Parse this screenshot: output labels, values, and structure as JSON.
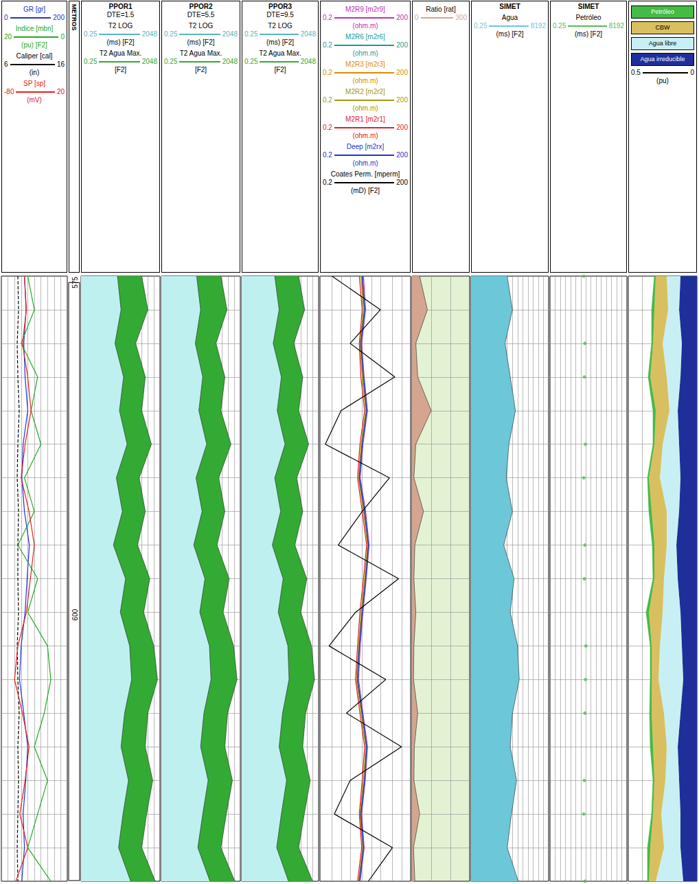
{
  "chart_data": [
    {
      "type": "line",
      "xlim": [
        0,
        200
      ],
      "xticks": [
        0,
        20,
        40,
        60,
        80,
        100,
        120,
        140,
        160,
        180,
        200
      ],
      "grid": true,
      "tick_labels": false,
      "y": [
        575,
        577.5,
        580,
        582.5,
        585,
        587.5,
        590,
        592.5,
        595,
        597.5,
        600,
        602.5,
        605,
        607.5,
        610,
        612.5,
        615,
        617.5,
        620
      ],
      "series": [
        {
          "name": "GR [gr]",
          "color": "#2233cc",
          "values": [
            70,
            75,
            68,
            72,
            80,
            66,
            62,
            70,
            85,
            78,
            72,
            60,
            55,
            68,
            80,
            74,
            66,
            70,
            62
          ]
        },
        {
          "name": "Indice [mbn]",
          "unit": "(pu) [F2]",
          "color": "#22aa22",
          "xlim": [
            20,
            0
          ],
          "values": [
            12,
            10,
            14,
            9,
            11,
            8,
            13,
            10,
            15,
            9,
            12,
            6,
            5,
            7,
            10,
            6,
            9,
            12,
            5
          ]
        },
        {
          "name": "Caliper [cal]",
          "unit": "(in)",
          "color": "#000000",
          "line_style": "dashed",
          "xlim": [
            6,
            16
          ],
          "values": [
            8.5,
            8.6,
            8.4,
            8.5,
            8.7,
            8.5,
            8.4,
            8.6,
            8.5,
            8.5,
            8.6,
            8.4,
            8.5,
            8.7,
            8.5,
            8.6,
            8.5,
            8.4,
            8.5
          ]
        },
        {
          "name": "SP [sp]",
          "unit": "(mV)",
          "color": "#dd2222",
          "xlim": [
            -80,
            20
          ],
          "values": [
            -45,
            -42,
            -48,
            -40,
            -35,
            -44,
            -50,
            -38,
            -30,
            -36,
            -42,
            -55,
            -60,
            -48,
            -38,
            -44,
            -52,
            -40,
            -58
          ]
        }
      ]
    },
    {
      "type": "depth",
      "title": "METROS",
      "tick_labels": "y",
      "yticks": [
        575,
        600
      ],
      "y": [
        575,
        577.5,
        580,
        582.5,
        585,
        587.5,
        590,
        592.5,
        595,
        597.5,
        600,
        602.5,
        605,
        607.5,
        610,
        612.5,
        615,
        617.5,
        620
      ]
    },
    {
      "type": "area",
      "title": "PPOR1",
      "subtitle": "DTE=1.5",
      "log": "x",
      "xlim": [
        0.25,
        2048
      ],
      "xticks": [
        0.25,
        0.5,
        1,
        2,
        4,
        8,
        16,
        32,
        64,
        128,
        256,
        512,
        1024,
        2048
      ],
      "grid": true,
      "tick_labels": false,
      "y": [
        575,
        577.5,
        580,
        582.5,
        585,
        587.5,
        590,
        592.5,
        595,
        597.5,
        600,
        602.5,
        605,
        607.5,
        610,
        612.5,
        615,
        617.5,
        620
      ],
      "series": [
        {
          "name": "T2 LOG",
          "unit": "(ms) [F2]",
          "color": "#bff0f0",
          "values": [
            16,
            24,
            12,
            32,
            20,
            48,
            14,
            28,
            10,
            40,
            22,
            64,
            80,
            36,
            24,
            56,
            30,
            18,
            72
          ]
        },
        {
          "name": "T2 Agua Max.",
          "unit": "[F2]",
          "color": "#33aa33",
          "values": [
            256,
            512,
            128,
            384,
            256,
            768,
            192,
            384,
            160,
            640,
            320,
            1024,
            1536,
            512,
            384,
            896,
            448,
            256,
            1200
          ]
        }
      ]
    },
    {
      "type": "area",
      "title": "PPOR2",
      "subtitle": "DTE=5.5",
      "log": "x",
      "xlim": [
        0.25,
        2048
      ],
      "xticks": [
        0.25,
        0.5,
        1,
        2,
        4,
        8,
        16,
        32,
        64,
        128,
        256,
        512,
        1024,
        2048
      ],
      "grid": true,
      "tick_labels": false,
      "y": [
        575,
        577.5,
        580,
        582.5,
        585,
        587.5,
        590,
        592.5,
        595,
        597.5,
        600,
        602.5,
        605,
        607.5,
        610,
        612.5,
        615,
        617.5,
        620
      ],
      "series": [
        {
          "name": "T2 LOG",
          "unit": "(ms) [F2]",
          "color": "#bff0f0",
          "values": [
            14,
            22,
            12,
            28,
            18,
            44,
            13,
            26,
            10,
            36,
            20,
            60,
            72,
            32,
            22,
            52,
            28,
            16,
            64
          ]
        },
        {
          "name": "T2 Agua Max.",
          "unit": "[F2]",
          "color": "#33aa33",
          "values": [
            224,
            448,
            128,
            352,
            224,
            704,
            176,
            352,
            144,
            576,
            288,
            960,
            1408,
            480,
            352,
            832,
            416,
            224,
            1100
          ]
        }
      ]
    },
    {
      "type": "area",
      "title": "PPOR3",
      "subtitle": "DTE=9.5",
      "log": "x",
      "xlim": [
        0.25,
        2048
      ],
      "xticks": [
        0.25,
        0.5,
        1,
        2,
        4,
        8,
        16,
        32,
        64,
        128,
        256,
        512,
        1024,
        2048
      ],
      "grid": true,
      "tick_labels": false,
      "y": [
        575,
        577.5,
        580,
        582.5,
        585,
        587.5,
        590,
        592.5,
        595,
        597.5,
        600,
        602.5,
        605,
        607.5,
        610,
        612.5,
        615,
        617.5,
        620
      ],
      "series": [
        {
          "name": "T2 LOG",
          "unit": "(ms) [F2]",
          "color": "#bff0f0",
          "values": [
            12,
            20,
            10,
            26,
            16,
            40,
            12,
            24,
            9,
            32,
            18,
            56,
            64,
            30,
            20,
            48,
            26,
            15,
            60
          ]
        },
        {
          "name": "T2 Agua Max.",
          "unit": "[F2]",
          "color": "#33aa33",
          "values": [
            200,
            400,
            112,
            320,
            200,
            640,
            160,
            320,
            128,
            512,
            256,
            896,
            1280,
            448,
            320,
            768,
            384,
            200,
            1024
          ]
        }
      ]
    },
    {
      "type": "line",
      "log": "x",
      "xlim": [
        0.2,
        200
      ],
      "xticks": [
        0.2,
        0.5,
        1,
        2,
        5,
        10,
        20,
        50,
        100,
        200
      ],
      "grid": true,
      "tick_labels": false,
      "y": [
        575,
        577.5,
        580,
        582.5,
        585,
        587.5,
        590,
        592.5,
        595,
        597.5,
        600,
        602.5,
        605,
        607.5,
        610,
        612.5,
        615,
        617.5,
        620
      ],
      "series": [
        {
          "name": "M2R9 [m2r9]",
          "unit": "(ohm.m)",
          "color": "#c030b0",
          "values": [
            5.5,
            6.5,
            4.8,
            5.8,
            7.5,
            5.3,
            4.3,
            6.5,
            8.5,
            6.8,
            5.3,
            4.3,
            3.8,
            5.3,
            7.5,
            6.3,
            4.8,
            5.8,
            4.3
          ]
        },
        {
          "name": "M2R6 [m2r6]",
          "unit": "(ohm.m)",
          "color": "#1a9a9a",
          "values": [
            5.2,
            6.2,
            4.6,
            5.6,
            7.2,
            5.1,
            4.1,
            6.2,
            8.2,
            6.6,
            5.1,
            4.1,
            3.6,
            5.1,
            7.2,
            6.1,
            4.6,
            5.6,
            4.1
          ]
        },
        {
          "name": "M2R3 [m2r3]",
          "unit": "(ohm.m)",
          "color": "#e08a00",
          "values": [
            4.8,
            5.8,
            4.4,
            5.2,
            6.8,
            4.8,
            3.9,
            5.8,
            7.8,
            6.2,
            4.8,
            3.9,
            3.4,
            4.8,
            6.8,
            5.8,
            4.4,
            5.4,
            3.9
          ]
        },
        {
          "name": "M2R2 [m2r2]",
          "unit": "(ohm.m)",
          "color": "#a09a10",
          "values": [
            4.5,
            5.5,
            4.2,
            5,
            6.5,
            4.6,
            3.8,
            5.5,
            7.5,
            6,
            4.6,
            3.8,
            3.2,
            4.6,
            6.5,
            5.5,
            4.2,
            5.2,
            3.8
          ]
        },
        {
          "name": "M2R1 [m2r1]",
          "unit": "(ohm.m)",
          "color": "#dd2222",
          "values": [
            4,
            5,
            4,
            4.5,
            6,
            4.2,
            3.5,
            5,
            7,
            5.5,
            4.2,
            3.5,
            3,
            4.2,
            6,
            5,
            4,
            4.8,
            3.5
          ]
        },
        {
          "name": "Deep [m2rx]",
          "unit": "(ohm.m)",
          "color": "#2233cc",
          "values": [
            5,
            6,
            4.5,
            5.5,
            7,
            5,
            4,
            6,
            8,
            6.5,
            5,
            4,
            3.5,
            5,
            7,
            6,
            4.5,
            5.5,
            4
          ]
        },
        {
          "name": "Coates Perm. [mperm]",
          "unit": "(mD) [F2]",
          "color": "#000000",
          "values": [
            0.5,
            20,
            2,
            60,
            1,
            0.3,
            40,
            5,
            0.8,
            80,
            3,
            0.4,
            30,
            1.5,
            100,
            2,
            0.6,
            50,
            8
          ]
        }
      ]
    },
    {
      "type": "area",
      "xlim": [
        0,
        300
      ],
      "xticks": [
        0,
        100,
        200,
        300
      ],
      "grid": true,
      "tick_labels": false,
      "y": [
        575,
        577.5,
        580,
        582.5,
        585,
        587.5,
        590,
        592.5,
        595,
        597.5,
        600,
        602.5,
        605,
        607.5,
        610,
        612.5,
        615,
        617.5,
        620
      ],
      "series": [
        {
          "name": "Ratio [rat]",
          "color": "#d4a590",
          "values": [
            40,
            80,
            20,
            30,
            100,
            20,
            10,
            60,
            15,
            10,
            20,
            10,
            8,
            30,
            12,
            10,
            40,
            8,
            15
          ]
        }
      ]
    },
    {
      "type": "area",
      "title": "SIMET",
      "log": "x",
      "xlim": [
        0.25,
        8192
      ],
      "xticks": [
        0.25,
        0.5,
        1,
        2,
        4,
        8,
        16,
        32,
        64,
        128,
        256,
        512,
        1024,
        2048,
        4096,
        8192
      ],
      "grid": true,
      "tick_labels": false,
      "y": [
        575,
        577.5,
        580,
        582.5,
        585,
        587.5,
        590,
        592.5,
        595,
        597.5,
        600,
        602.5,
        605,
        607.5,
        610,
        612.5,
        615,
        617.5,
        620
      ],
      "series": [
        {
          "name": "Agua",
          "unit": "(ms) [F2]",
          "color": "#6cc8d8",
          "values": [
            32,
            64,
            24,
            48,
            96,
            40,
            28,
            64,
            20,
            80,
            48,
            128,
            160,
            64,
            48,
            112,
            56,
            32,
            140
          ]
        }
      ]
    },
    {
      "type": "scatter",
      "title": "SIMET",
      "log": "x",
      "xlim": [
        0.25,
        8192
      ],
      "xticks": [
        0.25,
        0.5,
        1,
        2,
        4,
        8,
        16,
        32,
        64,
        128,
        256,
        512,
        1024,
        2048,
        4096,
        8192
      ],
      "grid": true,
      "tick_labels": false,
      "y": [
        575,
        577.5,
        580,
        582.5,
        585,
        587.5,
        590,
        592.5,
        595,
        597.5,
        600,
        602.5,
        605,
        607.5,
        610,
        612.5,
        615,
        617.5,
        620
      ],
      "series": [
        {
          "name": "Petróleo",
          "unit": "(ms) [F2]",
          "color": "#55bb55",
          "marker": "circle",
          "values": [
            24,
            null,
            28,
            26,
            null,
            30,
            24,
            null,
            28,
            26,
            null,
            32,
            30,
            28,
            null,
            26,
            24,
            null,
            28
          ]
        }
      ]
    },
    {
      "type": "area",
      "stacked": true,
      "unit": "(pu)",
      "xlim": [
        0.5,
        0
      ],
      "xticks": [
        0.5,
        0.4,
        0.3,
        0.2,
        0.1,
        0
      ],
      "grid": true,
      "tick_labels": false,
      "y": [
        575,
        577.5,
        580,
        582.5,
        585,
        587.5,
        590,
        592.5,
        595,
        597.5,
        600,
        602.5,
        605,
        607.5,
        610,
        612.5,
        615,
        617.5,
        620
      ],
      "series": [
        {
          "name": "Agua irreducible",
          "color": "#1f2f99",
          "values": [
            0.12,
            0.13,
            0.11,
            0.12,
            0.14,
            0.13,
            0.12,
            0.13,
            0.15,
            0.14,
            0.12,
            0.11,
            0.1,
            0.12,
            0.14,
            0.13,
            0.12,
            0.12,
            0.1
          ]
        },
        {
          "name": "Agua libre",
          "color": "#c8f0f4",
          "values": [
            0.1,
            0.08,
            0.14,
            0.1,
            0.06,
            0.12,
            0.15,
            0.09,
            0.07,
            0.1,
            0.13,
            0.16,
            0.18,
            0.12,
            0.08,
            0.1,
            0.14,
            0.12,
            0.2
          ]
        },
        {
          "name": "CBW",
          "color": "#d8c060",
          "values": [
            0.08,
            0.1,
            0.07,
            0.12,
            0.1,
            0.06,
            0.08,
            0.11,
            0.09,
            0.07,
            0.1,
            0.06,
            0.05,
            0.09,
            0.1,
            0.08,
            0.06,
            0.1,
            0.05
          ]
        },
        {
          "name": "Petróleo",
          "color": "#44bb44",
          "values": [
            0.01,
            0.02,
            0.01,
            0.015,
            0.02,
            0.01,
            0.01,
            0.02,
            0.015,
            0.01,
            0.02,
            0.01,
            0.01,
            0.015,
            0.02,
            0.01,
            0.01,
            0.02,
            0.01
          ]
        }
      ]
    }
  ]
}
